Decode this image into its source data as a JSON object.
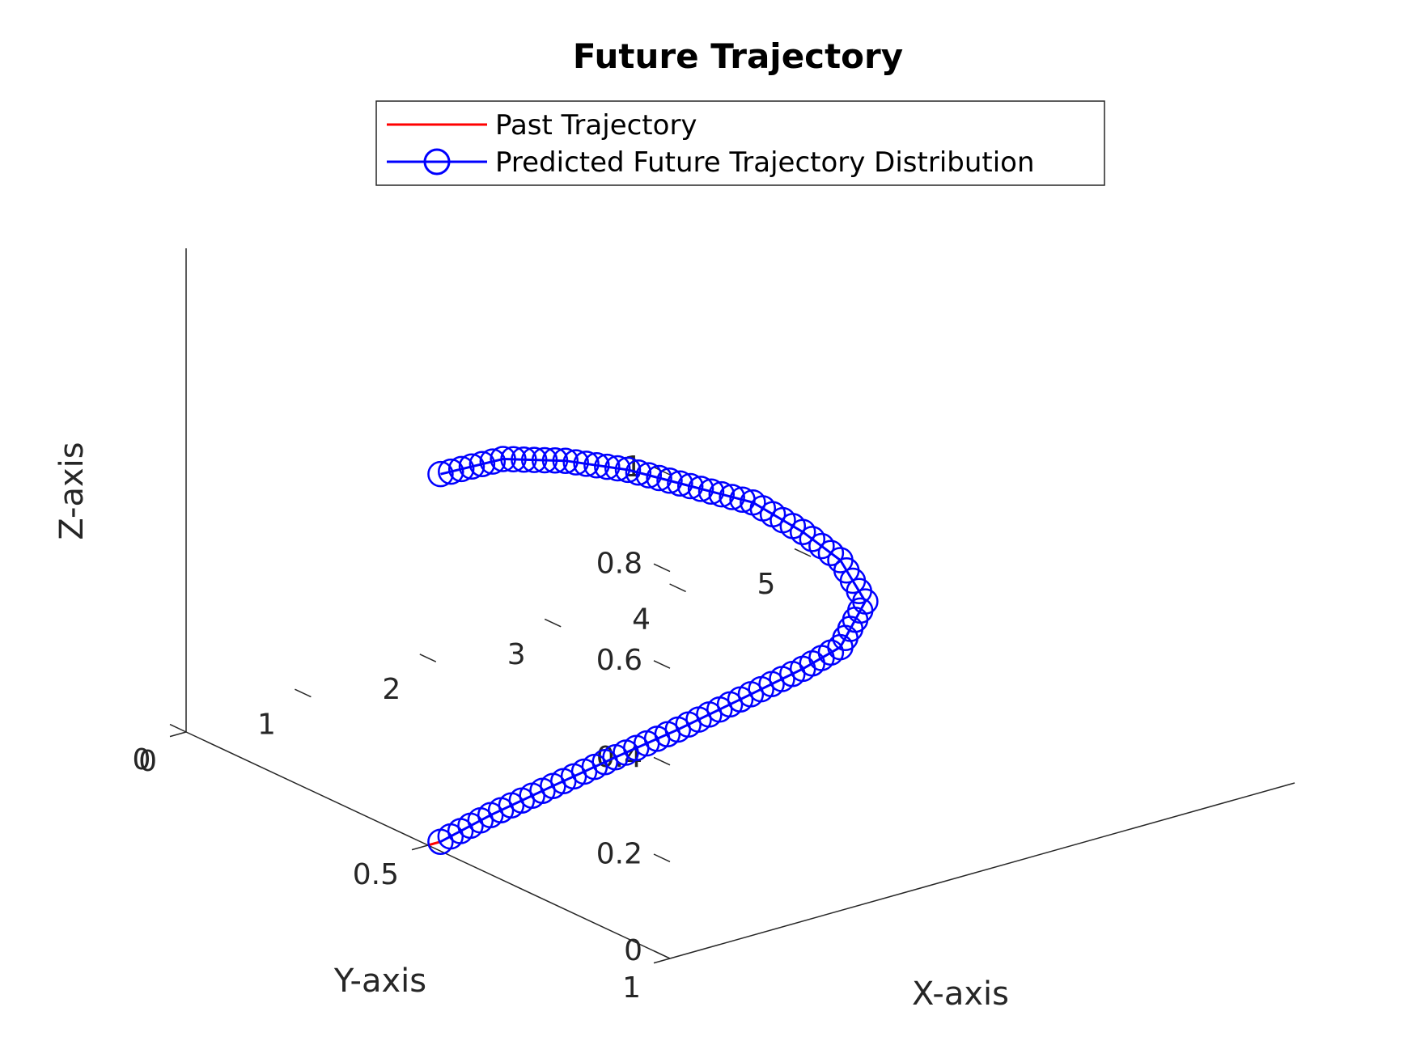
{
  "chart_data": {
    "type": "line",
    "title": "Future Trajectory",
    "xlabel": "X-axis",
    "ylabel": "Y-axis",
    "zlabel": "Z-axis",
    "xlim": [
      0,
      5
    ],
    "ylim": [
      0,
      1
    ],
    "zlim": [
      0,
      1
    ],
    "x_ticks": [
      "0",
      "1",
      "2",
      "3",
      "4",
      "5"
    ],
    "y_ticks": [
      "0",
      "0.5",
      "1"
    ],
    "z_ticks": [
      "0",
      "0.2",
      "0.4",
      "0.6",
      "0.8",
      "1"
    ],
    "grid": false,
    "legend_position": "top",
    "legend": [
      "Past Trajectory",
      "Predicted Future Trajectory Distribution"
    ],
    "colors": {
      "past": "#ff0000",
      "future": "#0000ff"
    },
    "series": [
      {
        "name": "Past Trajectory",
        "marker": "none",
        "x": [
          0.0,
          0.1
        ],
        "y": [
          0.5,
          0.5
        ],
        "z": [
          0.0,
          0.0
        ]
      },
      {
        "name": "Predicted Future Trajectory Distribution",
        "marker": "circle",
        "x": [
          0.1,
          0.5,
          1.0,
          1.5,
          2.0,
          2.5,
          3.0,
          3.3,
          3.5,
          3.3,
          3.0,
          2.6,
          2.1,
          1.6,
          1.1,
          0.6,
          0.1
        ],
        "y": [
          0.5,
          0.5,
          0.5,
          0.5,
          0.5,
          0.5,
          0.5,
          0.5,
          0.5,
          0.5,
          0.5,
          0.5,
          0.5,
          0.5,
          0.5,
          0.5,
          0.5
        ],
        "z": [
          0.0,
          0.026,
          0.05,
          0.073,
          0.094,
          0.12,
          0.147,
          0.17,
          0.25,
          0.35,
          0.43,
          0.52,
          0.59,
          0.66,
          0.715,
          0.755,
          0.76
        ]
      }
    ]
  }
}
